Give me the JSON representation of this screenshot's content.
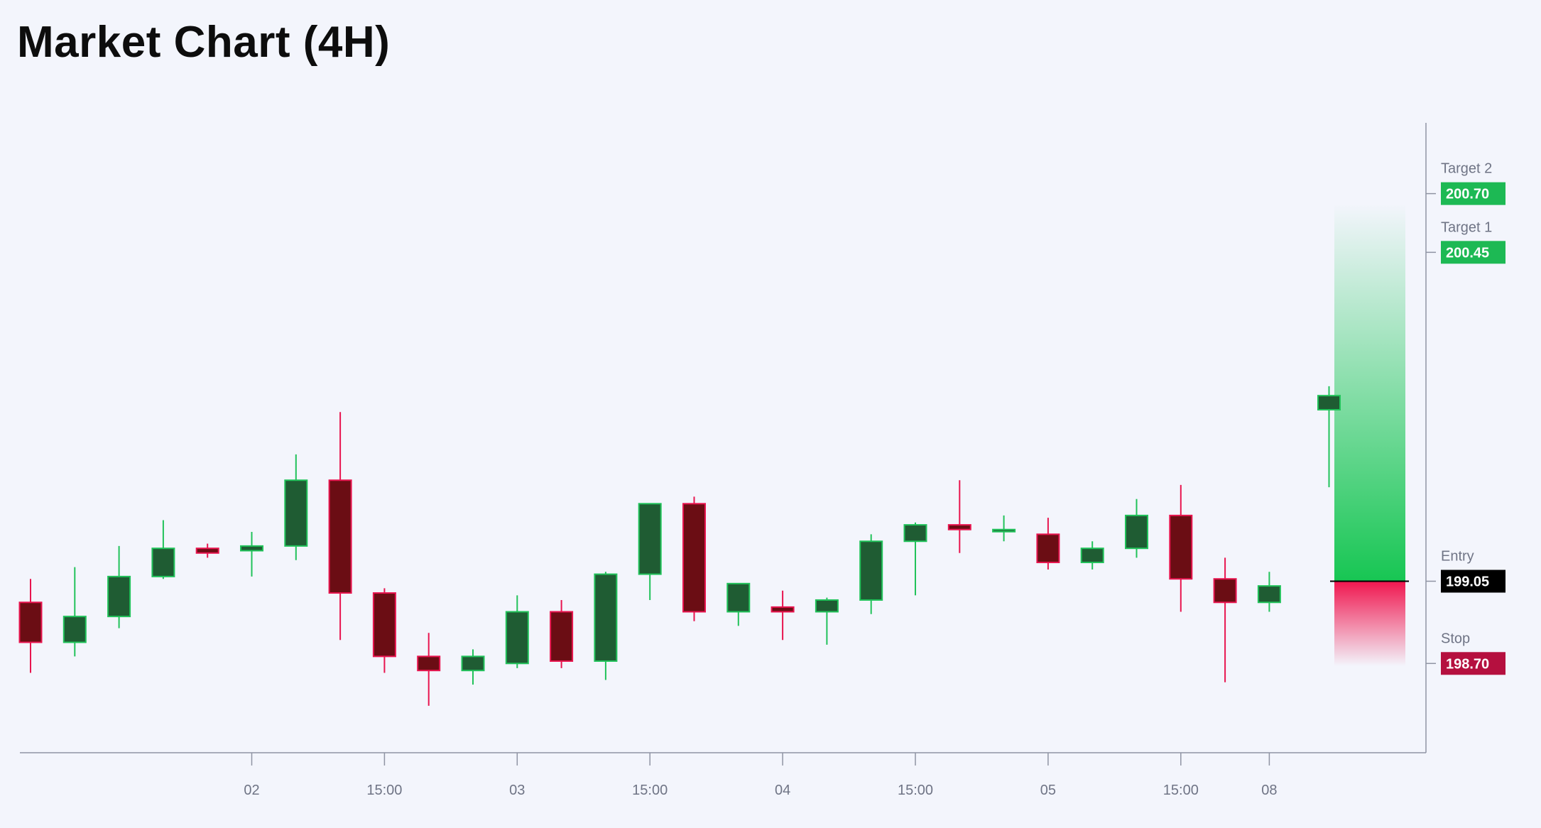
{
  "title": "Market Chart (4H)",
  "colors": {
    "background": "#f3f5fc",
    "up_body": "#1f5c33",
    "up_border": "#21c25a",
    "down_body": "#6b0d14",
    "down_border": "#e8154f",
    "target_badge": "#1db954",
    "entry_badge": "#000000",
    "stop_badge": "#b5103f",
    "reward_zone": "#17c653",
    "risk_zone": "#f0174f",
    "axis": "#8f94a3"
  },
  "chart_data": {
    "type": "candlestick",
    "timeframe": "4H",
    "x_tick_labels": [
      "02",
      "15:00",
      "03",
      "15:00",
      "04",
      "15:00",
      "05",
      "15:00",
      "08"
    ],
    "candles": [
      {
        "o": 198.96,
        "h": 199.06,
        "l": 198.66,
        "c": 198.79
      },
      {
        "o": 198.79,
        "h": 199.11,
        "l": 198.73,
        "c": 198.9
      },
      {
        "o": 198.9,
        "h": 199.2,
        "l": 198.85,
        "c": 199.07
      },
      {
        "o": 199.07,
        "h": 199.31,
        "l": 199.06,
        "c": 199.19
      },
      {
        "o": 199.19,
        "h": 199.21,
        "l": 199.15,
        "c": 199.17
      },
      {
        "o": 199.18,
        "h": 199.26,
        "l": 199.07,
        "c": 199.2
      },
      {
        "o": 199.2,
        "h": 199.59,
        "l": 199.14,
        "c": 199.48
      },
      {
        "o": 199.48,
        "h": 199.77,
        "l": 198.8,
        "c": 199.0
      },
      {
        "o": 199.0,
        "h": 199.02,
        "l": 198.66,
        "c": 198.73
      },
      {
        "o": 198.73,
        "h": 198.83,
        "l": 198.52,
        "c": 198.67
      },
      {
        "o": 198.67,
        "h": 198.76,
        "l": 198.61,
        "c": 198.73
      },
      {
        "o": 198.7,
        "h": 198.99,
        "l": 198.68,
        "c": 198.92
      },
      {
        "o": 198.92,
        "h": 198.97,
        "l": 198.68,
        "c": 198.71
      },
      {
        "o": 198.71,
        "h": 199.09,
        "l": 198.63,
        "c": 199.08
      },
      {
        "o": 199.08,
        "h": 199.37,
        "l": 198.97,
        "c": 199.38
      },
      {
        "o": 199.38,
        "h": 199.41,
        "l": 198.88,
        "c": 198.92
      },
      {
        "o": 198.92,
        "h": 199.03,
        "l": 198.86,
        "c": 199.04
      },
      {
        "o": 198.94,
        "h": 199.01,
        "l": 198.8,
        "c": 198.92
      },
      {
        "o": 198.92,
        "h": 198.98,
        "l": 198.78,
        "c": 198.97
      },
      {
        "o": 198.97,
        "h": 199.25,
        "l": 198.91,
        "c": 199.22
      },
      {
        "o": 199.22,
        "h": 199.3,
        "l": 198.99,
        "c": 199.29
      },
      {
        "o": 199.29,
        "h": 199.48,
        "l": 199.17,
        "c": 199.27
      },
      {
        "o": 199.27,
        "h": 199.33,
        "l": 199.22,
        "c": 199.27
      },
      {
        "o": 199.25,
        "h": 199.32,
        "l": 199.1,
        "c": 199.13
      },
      {
        "o": 199.13,
        "h": 199.22,
        "l": 199.1,
        "c": 199.19
      },
      {
        "o": 199.19,
        "h": 199.4,
        "l": 199.15,
        "c": 199.33
      },
      {
        "o": 199.33,
        "h": 199.46,
        "l": 198.92,
        "c": 199.06
      },
      {
        "o": 199.06,
        "h": 199.15,
        "l": 198.62,
        "c": 198.96
      },
      {
        "o": 198.96,
        "h": 199.09,
        "l": 198.92,
        "c": 199.03
      },
      {
        "o": 199.78,
        "h": 199.88,
        "l": 199.45,
        "c": 199.84
      }
    ],
    "levels": [
      {
        "name": "Target 2",
        "value": "200.70",
        "kind": "target"
      },
      {
        "name": "Target 1",
        "value": "200.45",
        "kind": "target"
      },
      {
        "name": "Entry",
        "value": "199.05",
        "kind": "entry"
      },
      {
        "name": "Stop",
        "value": "198.70",
        "kind": "stop"
      }
    ],
    "ylim": [
      198.32,
      200.98
    ],
    "grid": false
  }
}
